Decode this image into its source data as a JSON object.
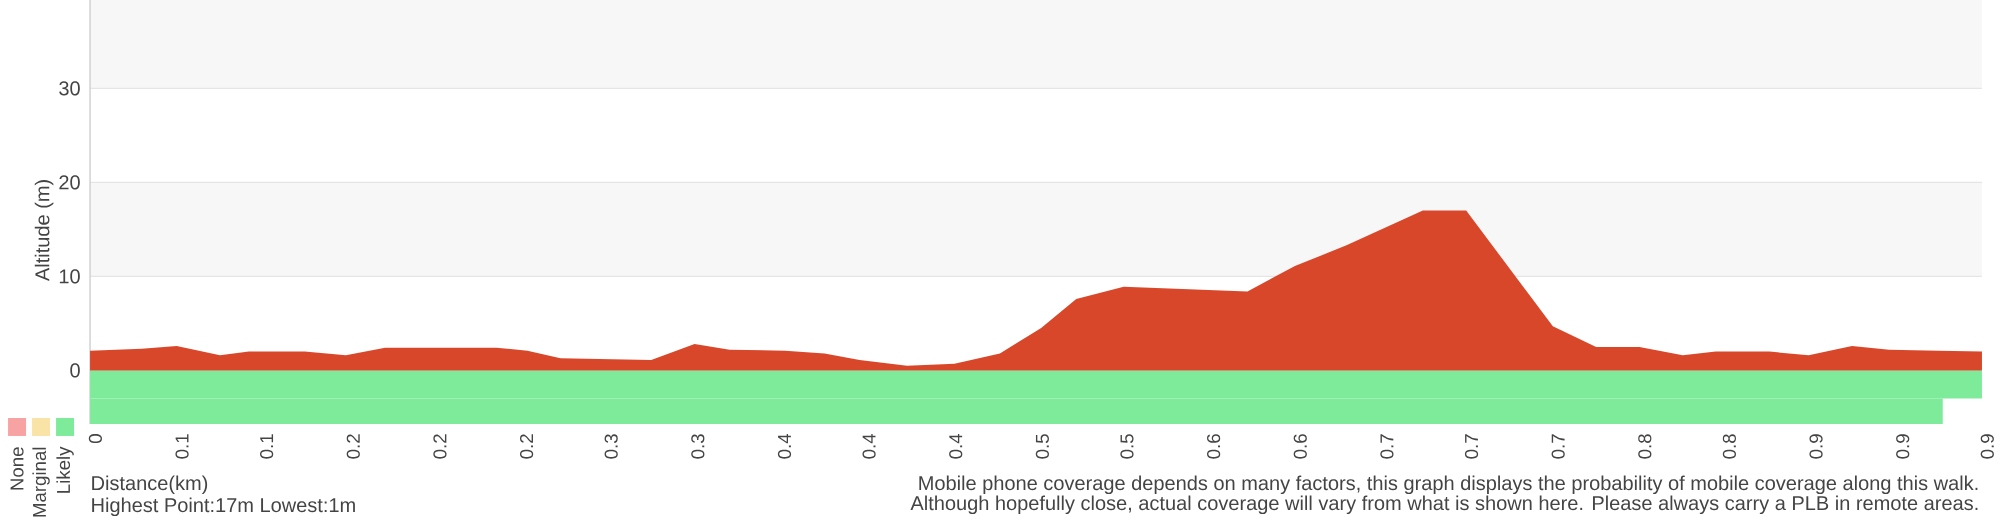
{
  "chart_data": {
    "type": "area",
    "ylabel": "Altitude (m)",
    "xlabel": "Distance(km)",
    "x": [
      0.029,
      0.054,
      0.071,
      0.092,
      0.106,
      0.133,
      0.153,
      0.172,
      0.226,
      0.241,
      0.257,
      0.301,
      0.322,
      0.339,
      0.366,
      0.385,
      0.402,
      0.425,
      0.448,
      0.47,
      0.49,
      0.507,
      0.53,
      0.59,
      0.613,
      0.638,
      0.675,
      0.696,
      0.738,
      0.759,
      0.78,
      0.801,
      0.817,
      0.843,
      0.862,
      0.883,
      0.901,
      0.925,
      0.946
    ],
    "series": [
      {
        "color": "#d9472a",
        "values": [
          2.1,
          2.3,
          2.6,
          1.6,
          2.0,
          2.0,
          1.6,
          2.4,
          2.4,
          2.1,
          1.3,
          1.1,
          2.8,
          2.2,
          2.1,
          1.8,
          1.1,
          0.5,
          0.7,
          1.8,
          4.5,
          7.6,
          8.9,
          8.4,
          11.1,
          13.3,
          17,
          17,
          4.7,
          2.5,
          2.5,
          1.6,
          2.0,
          2.0,
          1.6,
          2.6,
          2.2,
          2.1,
          2.0
        ]
      },
      {
        "name": "None",
        "color": "#f7a3a3",
        "values": [
          null,
          null,
          null,
          null,
          null,
          null,
          null,
          null,
          null,
          null,
          null,
          null,
          null,
          null,
          null,
          null,
          null,
          null,
          null,
          null,
          null,
          null,
          null,
          null,
          null,
          null,
          null,
          null,
          null,
          null,
          null,
          null,
          null,
          null,
          null,
          null,
          null,
          null,
          null
        ]
      },
      {
        "name": "Marginal",
        "color": "#fae3a6",
        "values": [
          null,
          null,
          null,
          null,
          null,
          null,
          null,
          null,
          null,
          null,
          null,
          null,
          null,
          null,
          null,
          null,
          null,
          null,
          null,
          null,
          null,
          null,
          null,
          null,
          null,
          null,
          null,
          null,
          null,
          null,
          null,
          null,
          null,
          null,
          null,
          null,
          null,
          null,
          null
        ]
      },
      {
        "name": "Likely",
        "color": "#7eeb9b",
        "values": [
          null,
          null,
          null,
          null,
          null,
          null,
          null,
          null,
          null,
          null,
          null,
          null,
          null,
          null,
          null,
          null,
          null,
          null,
          null,
          null,
          null,
          null,
          null,
          null,
          null,
          null,
          null,
          null,
          null,
          null,
          null,
          null,
          null,
          null,
          null,
          null,
          null,
          null,
          null
        ]
      }
    ],
    "bands": [
      {
        "axis": "y",
        "from": -3,
        "to": 0,
        "color": "#7eeb9b"
      },
      {
        "axis": "x",
        "from": 0.029,
        "to": 0.927,
        "color": "#7eeb9b"
      }
    ],
    "xlim": [
      0.029,
      0.946
    ],
    "ylim": [
      -5.7,
      39.4
    ],
    "xticks": [
      {
        "value": 0.029,
        "label": "0"
      },
      {
        "value": 0.071,
        "label": "0.1"
      },
      {
        "value": 0.112,
        "label": "0.1"
      },
      {
        "value": 0.154,
        "label": "0.2"
      },
      {
        "value": 0.196,
        "label": "0.2"
      },
      {
        "value": 0.238,
        "label": "0.2"
      },
      {
        "value": 0.279,
        "label": "0.3"
      },
      {
        "value": 0.321,
        "label": "0.3"
      },
      {
        "value": 0.363,
        "label": "0.4"
      },
      {
        "value": 0.404,
        "label": "0.4"
      },
      {
        "value": 0.446,
        "label": "0.4"
      },
      {
        "value": 0.488,
        "label": "0.5"
      },
      {
        "value": 0.529,
        "label": "0.5"
      },
      {
        "value": 0.571,
        "label": "0.6"
      },
      {
        "value": 0.613,
        "label": "0.6"
      },
      {
        "value": 0.655,
        "label": "0.7"
      },
      {
        "value": 0.696,
        "label": "0.7"
      },
      {
        "value": 0.738,
        "label": "0.7"
      },
      {
        "value": 0.78,
        "label": "0.8"
      },
      {
        "value": 0.821,
        "label": "0.8"
      },
      {
        "value": 0.863,
        "label": "0.9"
      },
      {
        "value": 0.905,
        "label": "0.9"
      },
      {
        "value": 0.946,
        "label": "0.9"
      }
    ],
    "yticks": [
      0,
      10,
      20,
      30
    ],
    "grid": "y",
    "legend": "bottom left",
    "annotations": [
      "Highest Point:17m Lowest:1m",
      "Mobile phone coverage depends on many factors, this graph displays the probability of mobile coverage along this walk.",
      "Although hopefully close, actual coverage will vary from what is shown here. Please always carry a PLB in remote areas."
    ]
  }
}
